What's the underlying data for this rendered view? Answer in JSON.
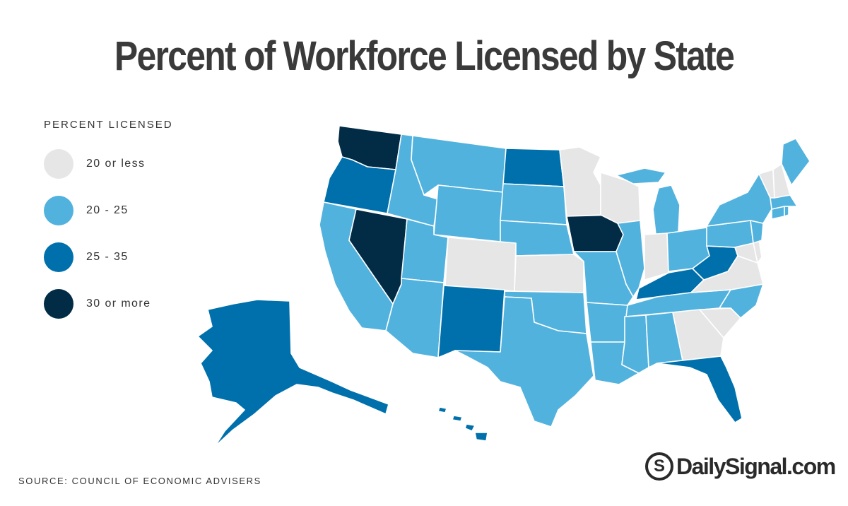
{
  "title": "Percent of Workforce Licensed by State",
  "legend": {
    "title": "PERCENT LICENSED",
    "items": [
      {
        "label": "20 or less",
        "color": "#e6e6e6"
      },
      {
        "label": "20 - 25",
        "color": "#52b2de"
      },
      {
        "label": "25 - 35",
        "color": "#0070ac"
      },
      {
        "label": "30 or more",
        "color": "#022b45"
      }
    ]
  },
  "source": "SOURCE: COUNCIL OF ECONOMIC ADVISERS",
  "brand": {
    "mark": "S",
    "text": "DailySignal.com"
  },
  "regions": {
    "Washington": "#022b45",
    "Oregon": "#0070ac",
    "California": "#52b2de",
    "Nevada": "#022b45",
    "Idaho": "#52b2de",
    "Montana": "#52b2de",
    "Wyoming": "#52b2de",
    "Utah": "#52b2de",
    "Arizona": "#52b2de",
    "Colorado": "#e6e6e6",
    "New Mexico": "#0070ac",
    "North Dakota": "#0070ac",
    "South Dakota": "#52b2de",
    "Nebraska": "#52b2de",
    "Kansas": "#e6e6e6",
    "Oklahoma": "#52b2de",
    "Texas": "#52b2de",
    "Minnesota": "#e6e6e6",
    "Iowa": "#022b45",
    "Missouri": "#52b2de",
    "Arkansas": "#52b2de",
    "Louisiana": "#52b2de",
    "Wisconsin": "#e6e6e6",
    "Illinois": "#52b2de",
    "Michigan": "#52b2de",
    "Indiana": "#e6e6e6",
    "Ohio": "#52b2de",
    "Kentucky": "#0070ac",
    "Tennessee": "#52b2de",
    "Mississippi": "#52b2de",
    "Alabama": "#52b2de",
    "Georgia": "#e6e6e6",
    "Florida": "#0070ac",
    "South Carolina": "#e6e6e6",
    "North Carolina": "#52b2de",
    "Virginia": "#e6e6e6",
    "West Virginia": "#0070ac",
    "Maryland": "#e6e6e6",
    "Delaware": "#e6e6e6",
    "Pennsylvania": "#52b2de",
    "New Jersey": "#52b2de",
    "New York": "#52b2de",
    "Connecticut": "#52b2de",
    "Rhode Island": "#52b2de",
    "Massachusetts": "#52b2de",
    "Vermont": "#e6e6e6",
    "New Hampshire": "#e6e6e6",
    "Maine": "#52b2de",
    "Alaska": "#0070ac",
    "Hawaii": "#0070ac"
  }
}
